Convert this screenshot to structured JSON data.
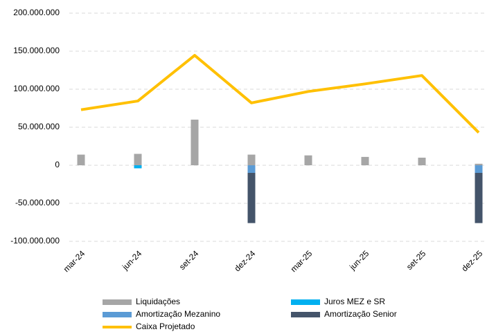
{
  "chart_data": {
    "type": "bar_line",
    "categories": [
      "mar-24",
      "jun-24",
      "set-24",
      "dez-24",
      "mar-25",
      "jun-25",
      "set-25",
      "dez-25"
    ],
    "series": [
      {
        "name": "Liquidações",
        "type": "bar",
        "color": "#a6a6a6",
        "values": [
          14000000,
          15000000,
          60000000,
          14000000,
          13000000,
          11000000,
          10000000,
          2000000
        ]
      },
      {
        "name": "Juros MEZ e SR",
        "type": "bar",
        "color": "#00b0f0",
        "values": [
          0,
          -4000000,
          0,
          0,
          0,
          0,
          0,
          0
        ]
      },
      {
        "name": "Amortização Mezanino",
        "type": "bar",
        "color": "#5b9bd5",
        "values": [
          0,
          0,
          0,
          -10000000,
          0,
          0,
          0,
          -10000000
        ]
      },
      {
        "name": "Amortização Senior",
        "type": "bar",
        "color": "#44546a",
        "values": [
          0,
          0,
          0,
          -66000000,
          0,
          0,
          0,
          -66000000
        ]
      },
      {
        "name": "Caixa Projetado",
        "type": "line",
        "color": "#ffc000",
        "values": [
          73000000,
          84500000,
          144500000,
          82000000,
          97000000,
          107000000,
          118000000,
          43000000
        ]
      }
    ],
    "ylim": [
      -100000000,
      200000000
    ],
    "yticks": [
      {
        "value": -100000000,
        "label": "-100.000.000"
      },
      {
        "value": -50000000,
        "label": "-50.000.000"
      },
      {
        "value": 0,
        "label": "0"
      },
      {
        "value": 50000000,
        "label": "50.000.000"
      },
      {
        "value": 100000000,
        "label": "100.000.000"
      },
      {
        "value": 150000000,
        "label": "150.000.000"
      },
      {
        "value": 200000000,
        "label": "200.000.000"
      }
    ],
    "grid": true
  }
}
